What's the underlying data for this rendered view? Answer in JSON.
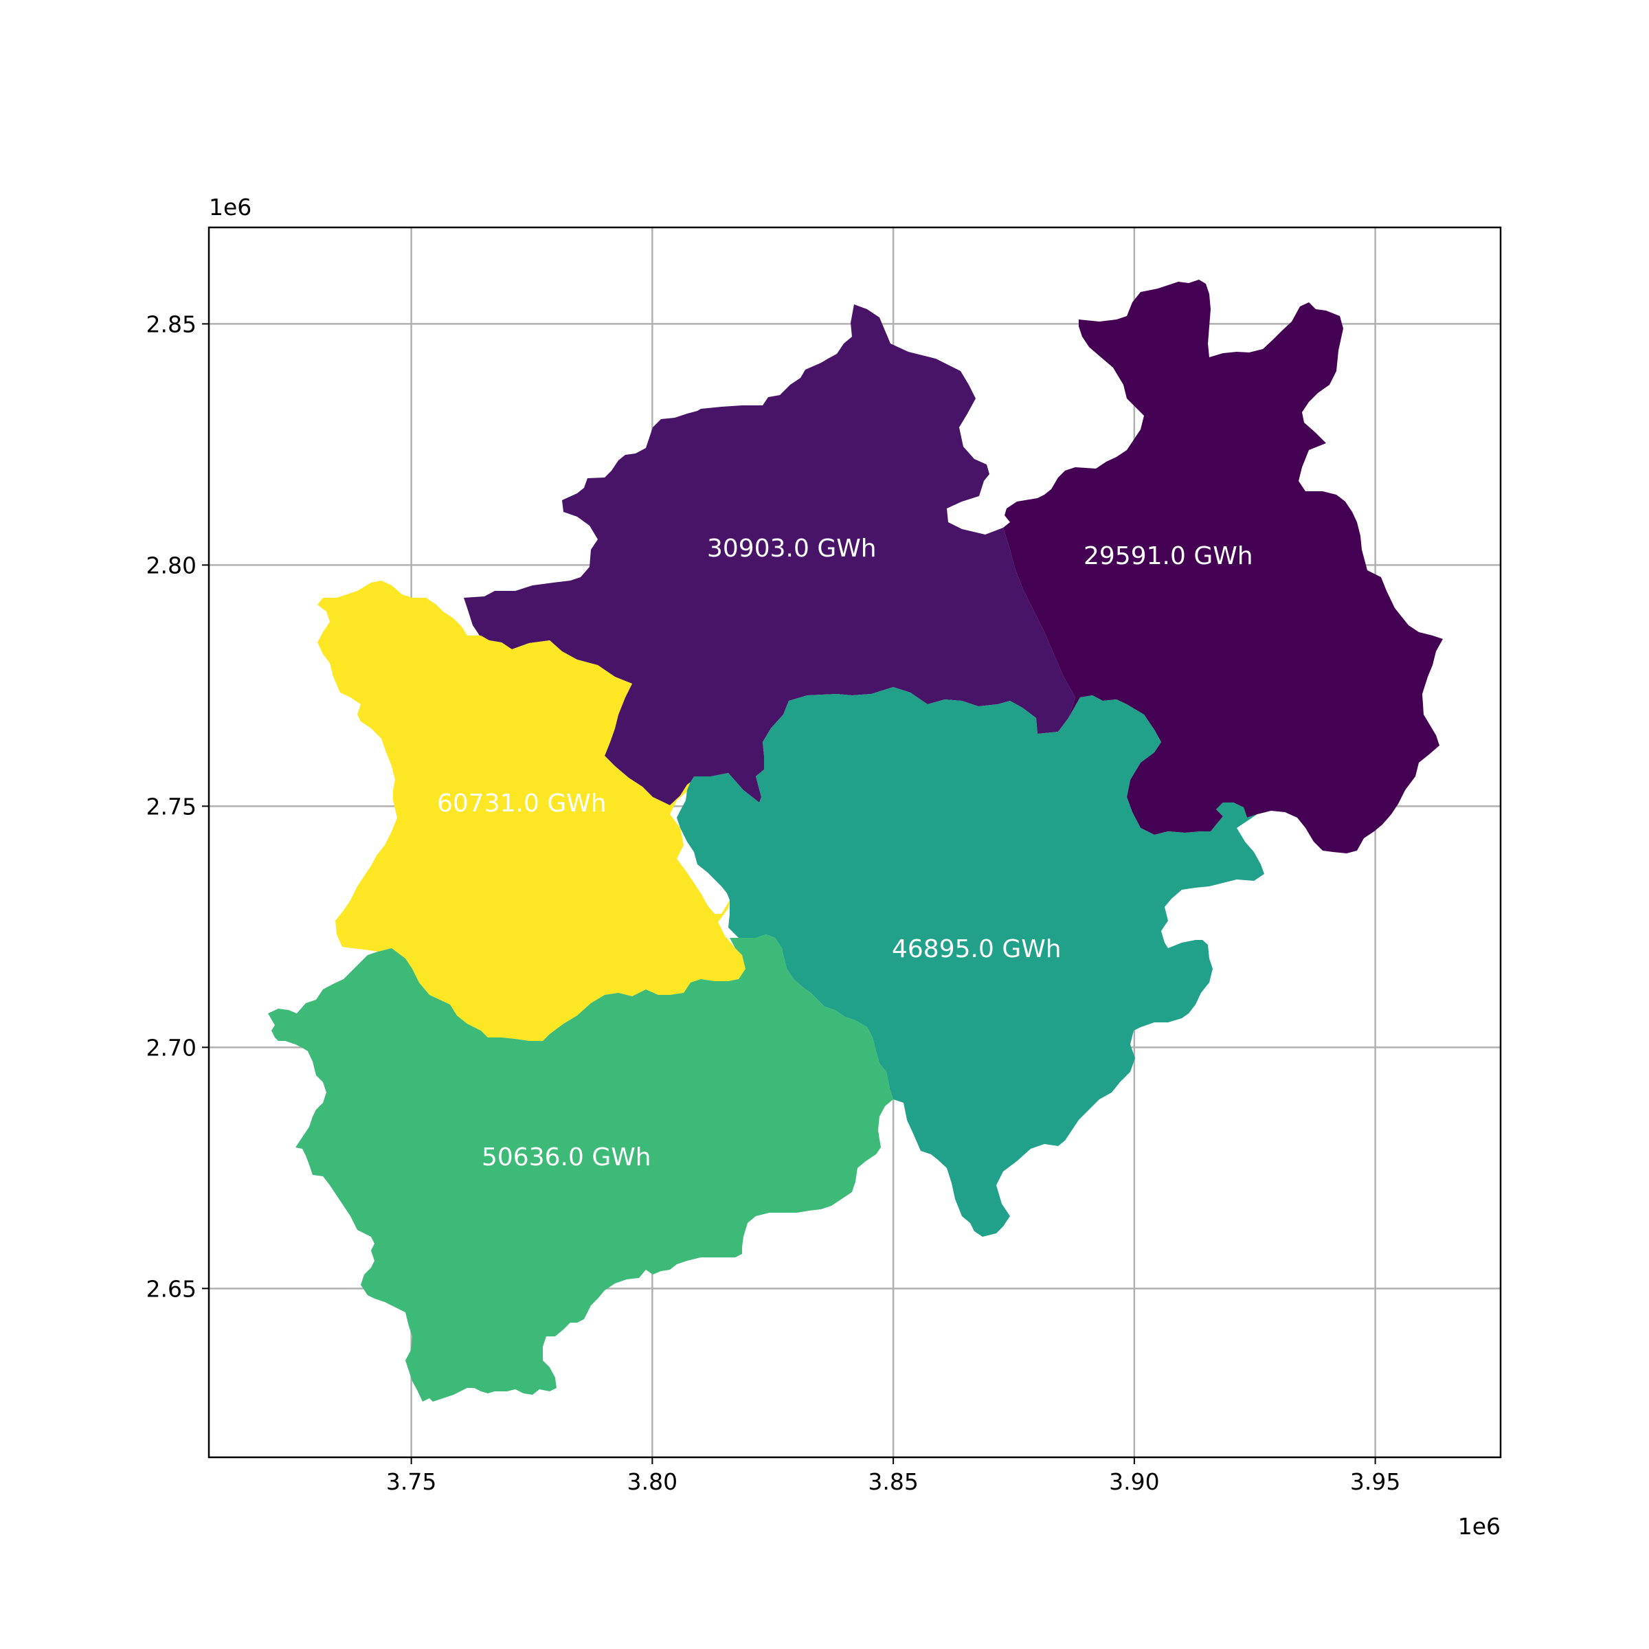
{
  "map": {
    "type": "choropleth",
    "colormap": "viridis",
    "grid": true,
    "x_offset_label": "1e6",
    "y_offset_label": "1e6",
    "xlim": [
      3.708,
      3.976
    ],
    "ylim": [
      2.615,
      2.87
    ],
    "x_ticks": [
      {
        "value": 3.75,
        "label": "3.75"
      },
      {
        "value": 3.8,
        "label": "3.80"
      },
      {
        "value": 3.85,
        "label": "3.85"
      },
      {
        "value": 3.9,
        "label": "3.90"
      },
      {
        "value": 3.95,
        "label": "3.95"
      }
    ],
    "y_ticks": [
      {
        "value": 2.65,
        "label": "2.65"
      },
      {
        "value": 2.7,
        "label": "2.70"
      },
      {
        "value": 2.75,
        "label": "2.75"
      },
      {
        "value": 2.8,
        "label": "2.80"
      },
      {
        "value": 2.85,
        "label": "2.85"
      }
    ],
    "regions": [
      {
        "id": "north-west",
        "label": "30903.0 GWh",
        "value": 30903.0,
        "color": "#481468"
      },
      {
        "id": "north-east",
        "label": "29591.0 GWh",
        "value": 29591.0,
        "color": "#440154"
      },
      {
        "id": "west",
        "label": "60731.0 GWh",
        "value": 60731.0,
        "color": "#fde725"
      },
      {
        "id": "central",
        "label": "46895.0 GWh",
        "value": 46895.0,
        "color": "#21a08a"
      },
      {
        "id": "south-west",
        "label": "50636.0 GWh",
        "value": 50636.0,
        "color": "#3dba78"
      }
    ]
  }
}
